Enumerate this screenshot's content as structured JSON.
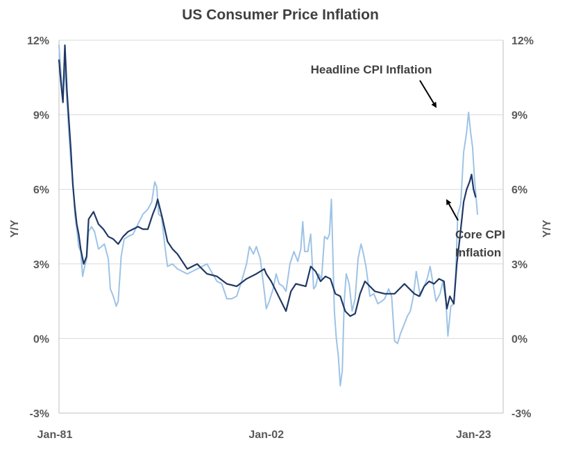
{
  "chart_data": {
    "type": "line",
    "title": "US Consumer Price Inflation",
    "ylabel_left": "Y/Y",
    "ylabel_right": "Y/Y",
    "xlabel": "",
    "ylim": [
      -3,
      12
    ],
    "xlim": [
      1981.0,
      2026.0
    ],
    "y_ticks": [
      -3,
      0,
      3,
      6,
      9,
      12
    ],
    "y_tick_labels": [
      "-3%",
      "0%",
      "3%",
      "6%",
      "9%",
      "12%"
    ],
    "x_ticks": [
      1981.0,
      2002.0,
      2023.0
    ],
    "x_tick_labels": [
      "Jan-81",
      "Jan-02",
      "Jan-23"
    ],
    "grid": "horizontal",
    "series": [
      {
        "name": "Headline CPI Inflation",
        "color": "#9dc3e6",
        "x": [
          1981.0,
          1981.2,
          1981.4,
          1981.6,
          1981.8,
          1982.0,
          1982.2,
          1982.4,
          1982.6,
          1982.8,
          1983.0,
          1983.2,
          1983.4,
          1983.6,
          1983.8,
          1984.0,
          1984.3,
          1984.6,
          1985.0,
          1985.3,
          1985.6,
          1986.0,
          1986.2,
          1986.5,
          1986.8,
          1987.0,
          1987.3,
          1987.6,
          1988.0,
          1988.5,
          1989.0,
          1989.5,
          1990.0,
          1990.4,
          1990.7,
          1990.9,
          1991.1,
          1991.4,
          1991.7,
          1992.0,
          1992.5,
          1993.0,
          1994.0,
          1995.0,
          1996.0,
          1997.0,
          1997.5,
          1998.0,
          1998.5,
          1999.0,
          1999.5,
          2000.0,
          2000.3,
          2000.7,
          2001.0,
          2001.4,
          2001.8,
          2002.0,
          2002.3,
          2002.7,
          2003.0,
          2003.3,
          2003.7,
          2004.0,
          2004.4,
          2004.8,
          2005.2,
          2005.5,
          2005.7,
          2005.9,
          2006.2,
          2006.5,
          2006.8,
          2007.0,
          2007.3,
          2007.6,
          2007.9,
          2008.2,
          2008.4,
          2008.6,
          2008.9,
          2009.1,
          2009.3,
          2009.5,
          2009.7,
          2009.9,
          2010.1,
          2010.4,
          2010.7,
          2011.0,
          2011.3,
          2011.6,
          2011.8,
          2012.1,
          2012.5,
          2012.9,
          2013.3,
          2013.7,
          2014.0,
          2014.4,
          2014.7,
          2015.0,
          2015.3,
          2015.6,
          2015.9,
          2016.3,
          2016.6,
          2016.9,
          2017.2,
          2017.6,
          2018.0,
          2018.3,
          2018.6,
          2018.9,
          2019.2,
          2019.6,
          2019.9,
          2020.2,
          2020.4,
          2020.7,
          2021.0,
          2021.2,
          2021.4,
          2021.7,
          2022.0,
          2022.3,
          2022.5,
          2022.7,
          2022.9,
          2023.1,
          2023.4
        ],
        "values": [
          11.8,
          10.7,
          9.8,
          10.9,
          9.6,
          8.3,
          7.1,
          6.4,
          5.0,
          4.4,
          3.7,
          3.5,
          2.5,
          2.9,
          3.2,
          4.3,
          4.5,
          4.3,
          3.6,
          3.7,
          3.8,
          3.2,
          2.0,
          1.7,
          1.3,
          1.5,
          3.3,
          4.0,
          4.1,
          4.2,
          4.6,
          5.0,
          5.2,
          5.5,
          6.3,
          6.1,
          5.0,
          4.9,
          3.8,
          2.9,
          3.0,
          2.8,
          2.6,
          2.8,
          3.0,
          2.3,
          2.2,
          1.6,
          1.6,
          1.7,
          2.3,
          3.0,
          3.7,
          3.4,
          3.7,
          3.2,
          1.9,
          1.2,
          1.5,
          2.0,
          2.6,
          2.2,
          2.1,
          1.9,
          3.0,
          3.5,
          3.1,
          3.6,
          4.7,
          3.5,
          3.5,
          4.2,
          2.0,
          2.1,
          2.6,
          2.4,
          4.1,
          4.0,
          4.2,
          5.6,
          1.1,
          0.0,
          -0.7,
          -1.9,
          -1.3,
          1.5,
          2.6,
          2.2,
          1.1,
          1.6,
          3.2,
          3.8,
          3.5,
          2.9,
          1.7,
          1.8,
          1.4,
          1.5,
          1.6,
          2.0,
          1.7,
          -0.1,
          -0.2,
          0.2,
          0.5,
          0.9,
          1.1,
          1.7,
          2.7,
          1.7,
          2.1,
          2.4,
          2.9,
          2.2,
          1.5,
          1.8,
          2.3,
          1.5,
          0.1,
          1.3,
          1.4,
          2.6,
          5.0,
          5.4,
          7.5,
          8.3,
          9.1,
          8.3,
          7.7,
          6.4,
          5.0
        ]
      },
      {
        "name": "Core CPI Inflation",
        "color": "#1f3864",
        "x": [
          1981.0,
          1981.2,
          1981.4,
          1981.6,
          1981.8,
          1982.0,
          1982.2,
          1982.4,
          1982.6,
          1982.8,
          1983.0,
          1983.2,
          1983.5,
          1983.8,
          1984.0,
          1984.5,
          1985.0,
          1985.5,
          1986.0,
          1986.5,
          1987.0,
          1987.5,
          1988.0,
          1988.5,
          1989.0,
          1989.5,
          1990.0,
          1990.5,
          1990.8,
          1991.0,
          1991.5,
          1992.0,
          1992.5,
          1993.0,
          1994.0,
          1995.0,
          1996.0,
          1997.0,
          1998.0,
          1999.0,
          2000.0,
          2001.0,
          2001.8,
          2002.0,
          2002.5,
          2003.0,
          2003.5,
          2004.0,
          2004.5,
          2005.0,
          2006.0,
          2006.5,
          2007.0,
          2007.5,
          2008.0,
          2008.5,
          2009.0,
          2009.5,
          2010.0,
          2010.5,
          2011.0,
          2011.5,
          2012.0,
          2012.5,
          2013.0,
          2014.0,
          2015.0,
          2016.0,
          2017.0,
          2017.5,
          2018.0,
          2018.5,
          2019.0,
          2019.5,
          2020.0,
          2020.3,
          2020.6,
          2021.0,
          2021.3,
          2021.6,
          2022.0,
          2022.3,
          2022.6,
          2022.8,
          2023.0,
          2023.2
        ],
        "values": [
          11.2,
          10.3,
          9.5,
          11.8,
          10.0,
          8.8,
          7.6,
          6.2,
          5.3,
          4.6,
          4.2,
          3.6,
          3.0,
          3.3,
          4.8,
          5.1,
          4.6,
          4.4,
          4.1,
          4.0,
          3.8,
          4.1,
          4.3,
          4.4,
          4.5,
          4.4,
          4.4,
          5.0,
          5.3,
          5.6,
          4.8,
          3.9,
          3.6,
          3.4,
          2.8,
          3.0,
          2.6,
          2.5,
          2.2,
          2.1,
          2.4,
          2.6,
          2.8,
          2.6,
          2.3,
          1.9,
          1.5,
          1.1,
          1.9,
          2.2,
          2.1,
          2.9,
          2.7,
          2.3,
          2.5,
          2.4,
          1.8,
          1.7,
          1.1,
          0.9,
          1.0,
          1.8,
          2.3,
          2.1,
          1.9,
          1.8,
          1.8,
          2.2,
          1.8,
          1.7,
          2.1,
          2.3,
          2.2,
          2.4,
          2.3,
          1.2,
          1.7,
          1.4,
          3.0,
          4.0,
          5.5,
          6.0,
          6.3,
          6.6,
          6.0,
          5.7
        ]
      }
    ],
    "annotations": [
      {
        "lines": [
          "Headline CPI Inflation"
        ],
        "points_to": {
          "x": 2022.5,
          "y": 9.1
        }
      },
      {
        "lines": [
          "Core CPI",
          "Inflation"
        ],
        "points_to": {
          "x": 2023.2,
          "y": 5.7
        }
      }
    ]
  }
}
